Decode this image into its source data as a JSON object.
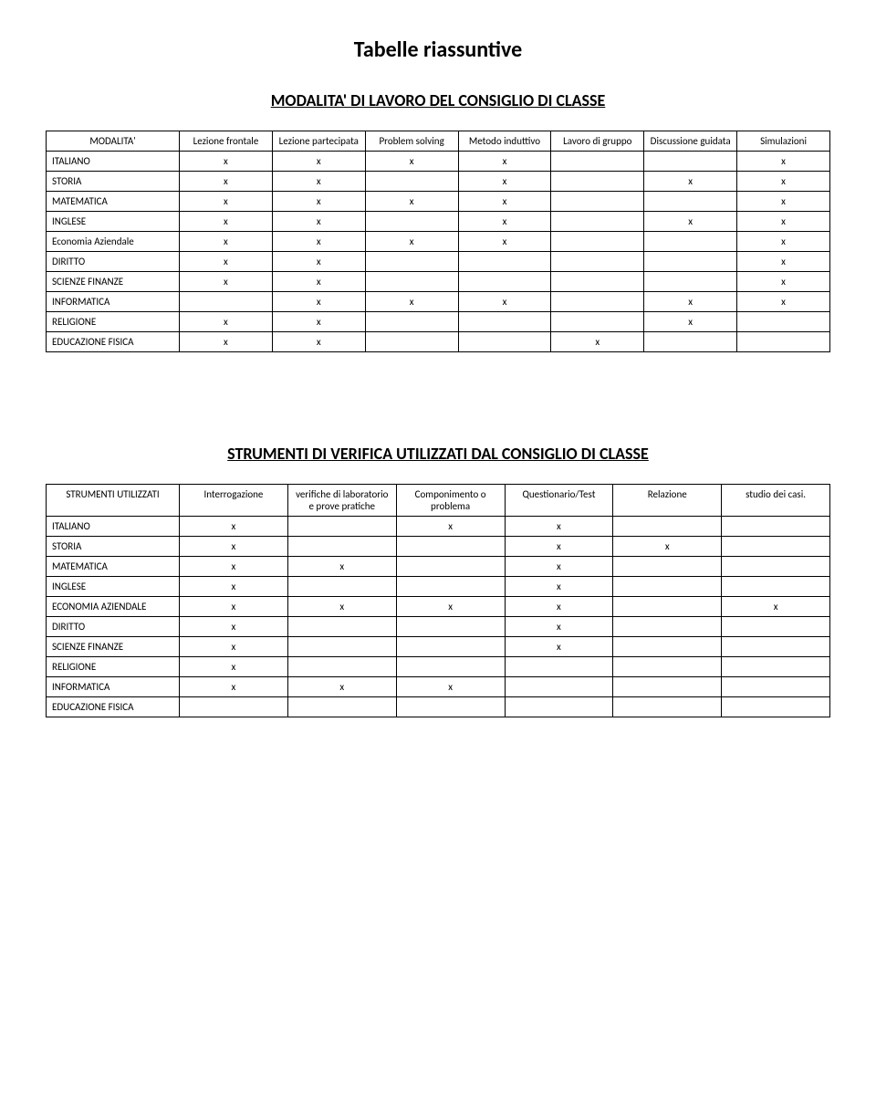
{
  "page_title": "Tabelle riassuntive",
  "table1": {
    "title": "MODALITA' DI LAVORO DEL CONSIGLIO DI CLASSE",
    "header_row_label": "MODALITA'",
    "columns": [
      "Lezione frontale",
      "Lezione partecipata",
      "Problem solving",
      "Metodo induttivo",
      "Lavoro di gruppo",
      "Discussione guidata",
      "Simulazioni"
    ],
    "rows": [
      {
        "label": "ITALIANO",
        "marks": [
          "x",
          "x",
          "x",
          "x",
          "",
          "",
          "x"
        ]
      },
      {
        "label": "STORIA",
        "marks": [
          "x",
          "x",
          "",
          "x",
          "",
          "x",
          "x"
        ]
      },
      {
        "label": "MATEMATICA",
        "marks": [
          "x",
          "x",
          "x",
          "x",
          "",
          "",
          "x"
        ]
      },
      {
        "label": "INGLESE",
        "marks": [
          "x",
          "x",
          "",
          "x",
          "",
          "x",
          "x"
        ]
      },
      {
        "label": "Economia Aziendale",
        "marks": [
          "x",
          "x",
          "x",
          "x",
          "",
          "",
          "x"
        ]
      },
      {
        "label": "DIRITTO",
        "marks": [
          "x",
          "x",
          "",
          "",
          "",
          "",
          "x"
        ]
      },
      {
        "label": "SCIENZE FINANZE",
        "marks": [
          "x",
          "x",
          "",
          "",
          "",
          "",
          "x"
        ]
      },
      {
        "label": "INFORMATICA",
        "marks": [
          "",
          "x",
          "x",
          "x",
          "",
          "x",
          "x"
        ]
      },
      {
        "label": "RELIGIONE",
        "marks": [
          "x",
          "x",
          "",
          "",
          "",
          "x",
          ""
        ]
      },
      {
        "label": "EDUCAZIONE FISICA",
        "marks": [
          "x",
          "x",
          "",
          "",
          "x",
          "",
          ""
        ]
      }
    ]
  },
  "table2": {
    "title": "STRUMENTI DI VERIFICA UTILIZZATI DAL CONSIGLIO DI CLASSE",
    "header_row_label": "STRUMENTI UTILIZZATI",
    "columns": [
      "Interrogazione",
      "verifiche di laboratorio e prove pratiche",
      "Componimento o problema",
      "Questionario/Test",
      "Relazione",
      "studio dei casi."
    ],
    "rows": [
      {
        "label": "ITALIANO",
        "marks": [
          "x",
          "",
          "x",
          "x",
          "",
          ""
        ]
      },
      {
        "label": "STORIA",
        "marks": [
          "x",
          "",
          "",
          "x",
          "x",
          ""
        ]
      },
      {
        "label": "MATEMATICA",
        "marks": [
          "x",
          "x",
          "",
          "x",
          "",
          ""
        ]
      },
      {
        "label": "INGLESE",
        "marks": [
          "x",
          "",
          "",
          "x",
          "",
          ""
        ]
      },
      {
        "label": "ECONOMIA AZIENDALE",
        "marks": [
          "x",
          "x",
          "x",
          "x",
          "",
          "x"
        ]
      },
      {
        "label": "DIRITTO",
        "marks": [
          "x",
          "",
          "",
          "x",
          "",
          ""
        ]
      },
      {
        "label": "SCIENZE FINANZE",
        "marks": [
          "x",
          "",
          "",
          "x",
          "",
          ""
        ]
      },
      {
        "label": "RELIGIONE",
        "marks": [
          "x",
          "",
          "",
          "",
          "",
          ""
        ]
      },
      {
        "label": "INFORMATICA",
        "marks": [
          "x",
          "x",
          "x",
          "",
          "",
          ""
        ]
      },
      {
        "label": "EDUCAZIONE FISICA",
        "marks": [
          "",
          "",
          "",
          "",
          "",
          ""
        ]
      }
    ]
  }
}
